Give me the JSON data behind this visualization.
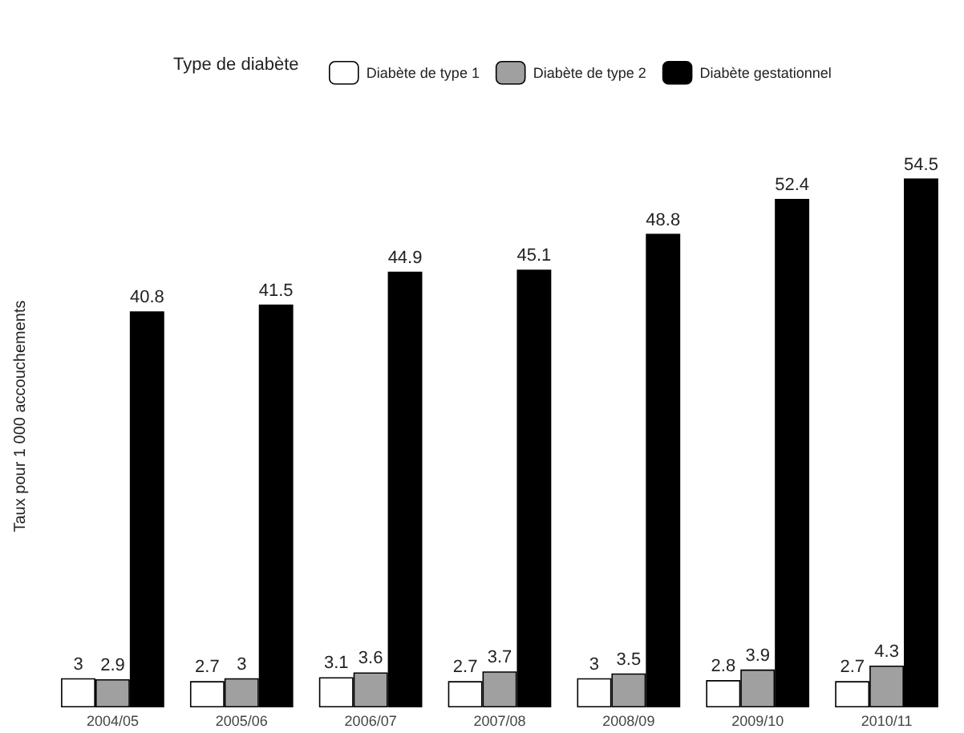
{
  "chart_data": {
    "type": "bar",
    "ylabel": "Taux pour 1 000 accouchements",
    "legend_title": "Type de diabète",
    "legend": "top",
    "data_labels": true,
    "grid": false,
    "categories": [
      "2004/05",
      "2005/06",
      "2006/07",
      "2007/08",
      "2008/09",
      "2009/10",
      "2010/11"
    ],
    "series": [
      {
        "name": "Diabète de type 1",
        "color": "#ffffff",
        "values": [
          3,
          2.7,
          3.1,
          2.7,
          3,
          2.8,
          2.7
        ]
      },
      {
        "name": "Diabète de type 2",
        "color": "#a0a0a0",
        "values": [
          2.9,
          3,
          3.6,
          3.7,
          3.5,
          3.9,
          4.3
        ]
      },
      {
        "name": "Diabète gestationnel",
        "color": "#000000",
        "values": [
          40.8,
          41.5,
          44.9,
          45.1,
          48.8,
          52.4,
          54.5
        ]
      }
    ]
  }
}
